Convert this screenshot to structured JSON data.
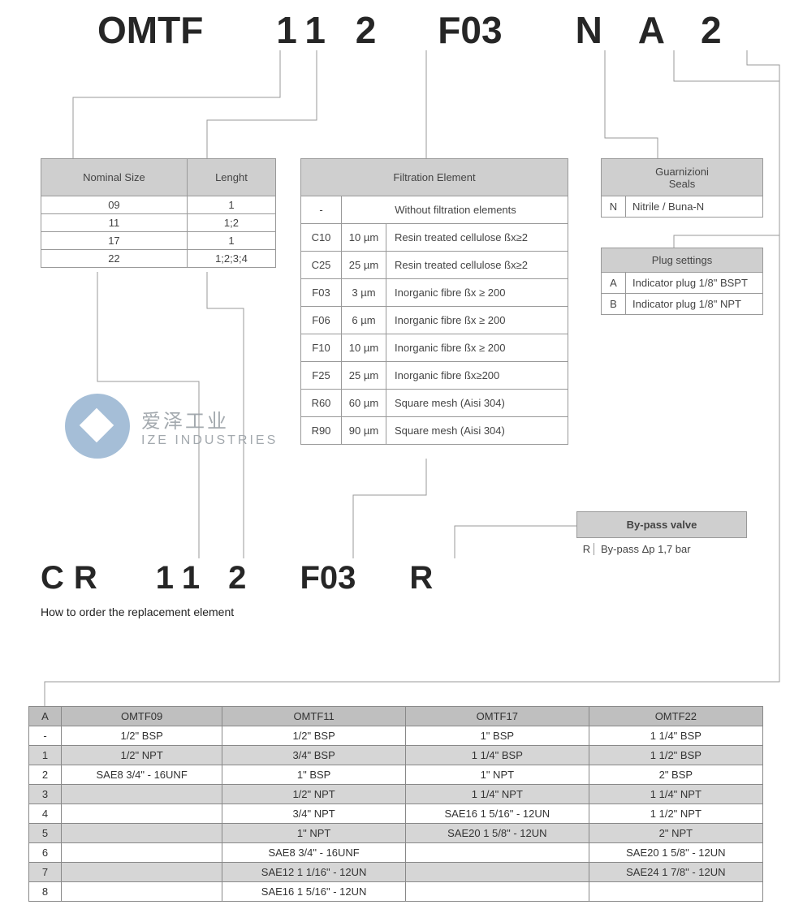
{
  "header_code": {
    "parts": [
      "OMTF",
      "11 2",
      "F03",
      "N",
      "A",
      "2"
    ]
  },
  "nominal_length": {
    "headers": [
      "Nominal Size",
      "Lenght"
    ],
    "rows": [
      [
        "09",
        "1"
      ],
      [
        "11",
        "1;2"
      ],
      [
        "17",
        "1"
      ],
      [
        "22",
        "1;2;3;4"
      ]
    ]
  },
  "filtration": {
    "header": "Filtration Element",
    "rows": [
      {
        "code": "-",
        "mic": "",
        "desc": "Without filtration elements"
      },
      {
        "code": "C10",
        "mic": "10 µm",
        "desc": "Resin treated cellulose ßx≥2"
      },
      {
        "code": "C25",
        "mic": "25 µm",
        "desc": "Resin treated cellulose ßx≥2"
      },
      {
        "code": "F03",
        "mic": "3 µm",
        "desc": "Inorganic fibre ßx ≥ 200"
      },
      {
        "code": "F06",
        "mic": "6 µm",
        "desc": "Inorganic fibre ßx ≥ 200"
      },
      {
        "code": "F10",
        "mic": "10 µm",
        "desc": "Inorganic fibre ßx ≥ 200"
      },
      {
        "code": "F25",
        "mic": "25 µm",
        "desc": "Inorganic fibre ßx≥200"
      },
      {
        "code": "R60",
        "mic": "60 µm",
        "desc": "Square mesh (Aisi 304)"
      },
      {
        "code": "R90",
        "mic": "90 µm",
        "desc": "Square mesh (Aisi 304)"
      }
    ]
  },
  "seals": {
    "header": "Guarnizioni\nSeals",
    "rows": [
      {
        "code": "N",
        "desc": "Nitrile / Buna-N"
      }
    ]
  },
  "plug": {
    "header": "Plug settings",
    "rows": [
      {
        "code": "A",
        "desc": "Indicator plug 1/8\" BSPT"
      },
      {
        "code": "B",
        "desc": "Indicator plug 1/8\" NPT"
      }
    ]
  },
  "bypass": {
    "header": "By-pass valve",
    "code": "R",
    "desc": "By-pass Δp 1,7 bar"
  },
  "code2": {
    "parts": [
      "CR",
      "11 2",
      "F03",
      "R"
    ],
    "subtitle": "How to order the replacement element"
  },
  "watermark": {
    "cn": "爱泽工业",
    "en": "IZE INDUSTRIES"
  },
  "conn": {
    "headers": [
      "A",
      "OMTF09",
      "OMTF11",
      "OMTF17",
      "OMTF22"
    ],
    "rows": [
      {
        "k": "-",
        "v": [
          "1/2\" BSP",
          "1/2\" BSP",
          "1\" BSP",
          "1 1/4\" BSP"
        ]
      },
      {
        "k": "1",
        "v": [
          "1/2\" NPT",
          "3/4\" BSP",
          "1 1/4\" BSP",
          "1 1/2\" BSP"
        ]
      },
      {
        "k": "2",
        "v": [
          "SAE8 3/4\" - 16UNF",
          "1\" BSP",
          "1\" NPT",
          "2\" BSP"
        ]
      },
      {
        "k": "3",
        "v": [
          "",
          "1/2\" NPT",
          "1 1/4\" NPT",
          "1 1/4\" NPT"
        ]
      },
      {
        "k": "4",
        "v": [
          "",
          "3/4\" NPT",
          "SAE16 1 5/16\" - 12UN",
          "1 1/2\" NPT"
        ]
      },
      {
        "k": "5",
        "v": [
          "",
          "1\" NPT",
          "SAE20 1 5/8\" - 12UN",
          "2\" NPT"
        ]
      },
      {
        "k": "6",
        "v": [
          "",
          "SAE8 3/4\" - 16UNF",
          "",
          "SAE20 1 5/8\" - 12UN"
        ]
      },
      {
        "k": "7",
        "v": [
          "",
          "SAE12 1 1/16\" - 12UN",
          "",
          "SAE24 1 7/8\" - 12UN"
        ]
      },
      {
        "k": "8",
        "v": [
          "",
          "SAE16 1 5/16\" - 12UN",
          "",
          ""
        ]
      }
    ]
  },
  "style": {
    "header_bg": "#cfcfcf",
    "line_color": "#9a9a9a",
    "conn_header_bg": "#bfbfbf",
    "conn_odd_bg": "#d6d6d6"
  }
}
